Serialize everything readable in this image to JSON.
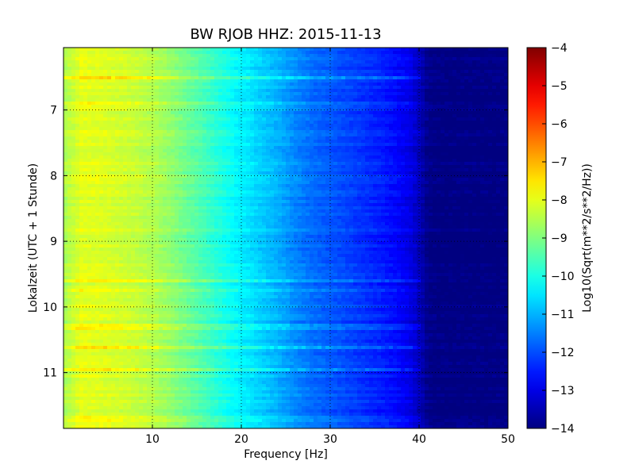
{
  "chart_data": {
    "type": "heatmap",
    "title": "BW RJOB HHZ: 2015-11-13",
    "xlabel": "Frequency [Hz]",
    "ylabel": "Lokalzeit (UTC + 1 Stunde)",
    "xlim": [
      0,
      50
    ],
    "ylim": [
      11.85,
      6.05
    ],
    "y_inverted": true,
    "x_ticks": [
      10,
      20,
      30,
      40,
      50
    ],
    "y_ticks": [
      7,
      8,
      9,
      10,
      11
    ],
    "grid": true,
    "colormap": "jet",
    "colorbar": {
      "label": "Log10(Sqrt(m**2/s**2/Hz))",
      "range": [
        -14,
        -4
      ],
      "ticks": [
        -4,
        -5,
        -6,
        -7,
        -8,
        -9,
        -10,
        -11,
        -12,
        -13,
        -14
      ]
    },
    "spectrum_profile": {
      "frequency_hz": [
        0,
        2,
        5,
        8,
        10,
        12,
        14,
        16,
        18,
        20,
        21,
        22,
        24,
        26,
        28,
        30,
        32,
        34,
        36,
        38,
        39,
        40,
        41,
        42,
        45,
        50
      ],
      "value": [
        -8.6,
        -8.0,
        -8.1,
        -8.3,
        -8.5,
        -8.8,
        -9.2,
        -9.6,
        -10.0,
        -10.4,
        -10.5,
        -10.7,
        -11.0,
        -11.4,
        -11.7,
        -11.9,
        -12.1,
        -12.3,
        -12.5,
        -12.8,
        -13.0,
        -13.4,
        -13.9,
        -14.0,
        -14.0,
        -14.0
      ]
    },
    "noisy_time_bands_hours": [
      {
        "time": 6.5,
        "delta": 0.8
      },
      {
        "time": 6.9,
        "delta": 0.3
      },
      {
        "time": 8.0,
        "delta": 0.3
      },
      {
        "time": 9.6,
        "delta": 0.6
      },
      {
        "time": 9.75,
        "delta": 0.4
      },
      {
        "time": 10.3,
        "delta": 0.5
      },
      {
        "time": 10.6,
        "delta": 0.6
      },
      {
        "time": 10.95,
        "delta": 0.7
      },
      {
        "time": 11.7,
        "delta": 0.3
      }
    ]
  }
}
